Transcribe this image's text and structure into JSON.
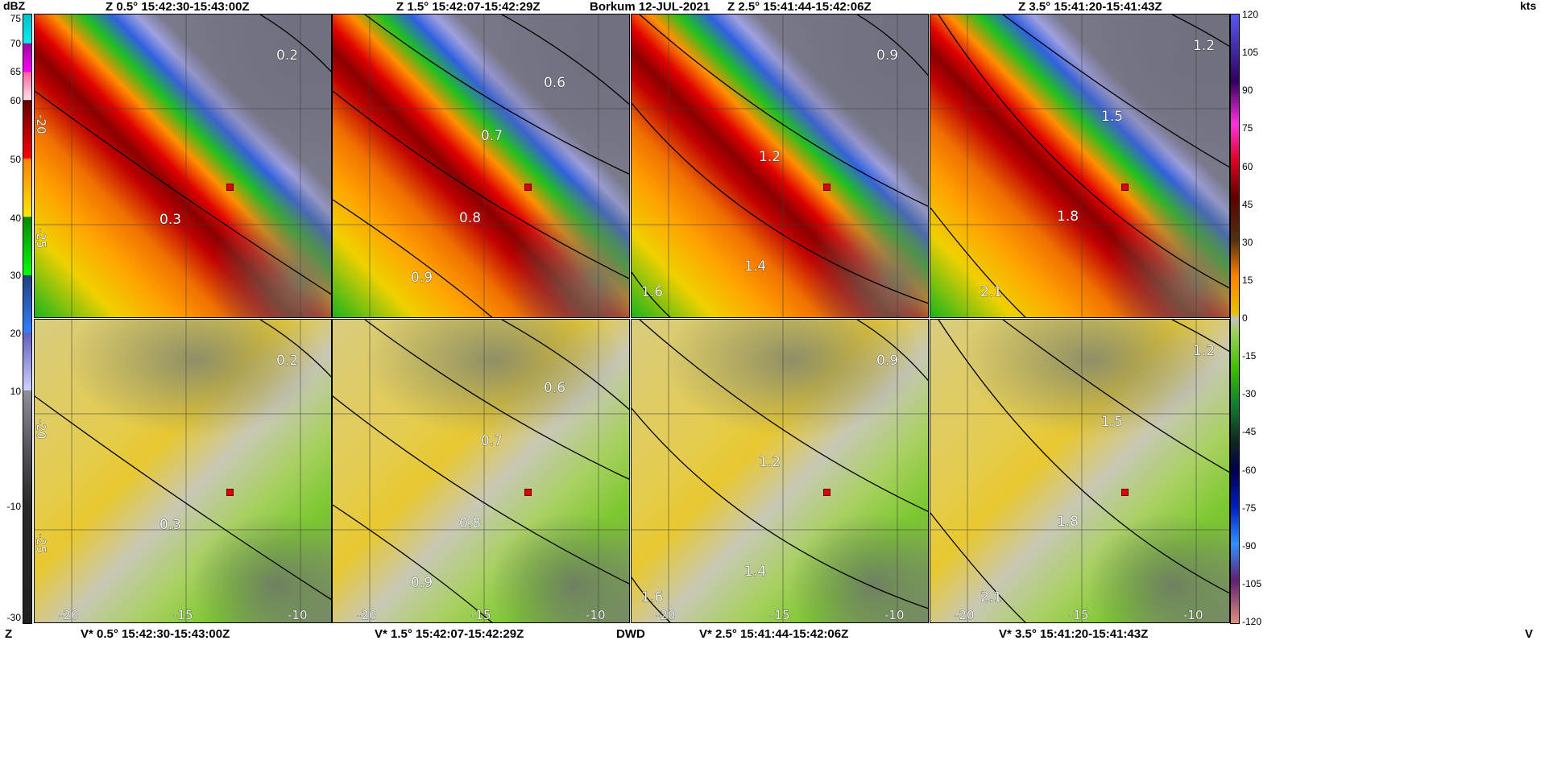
{
  "header": {
    "titles": [
      "Z 0.5°  15:42:30-15:43:00Z",
      "Z 1.5°  15:42:07-15:42:29Z",
      "Z 2.5°  15:41:44-15:42:06Z",
      "Z 3.5°  15:41:20-15:41:43Z"
    ],
    "station": "Borkum  12-JUL-2021",
    "left_unit": "dBZ",
    "right_unit": "kts"
  },
  "footer": {
    "titles": [
      "V* 0.5°  15:42:30-15:43:00Z",
      "V* 1.5°  15:42:07-15:42:29Z",
      "V* 2.5°  15:41:44-15:42:06Z",
      "V* 3.5°  15:41:20-15:41:43Z"
    ],
    "source": "DWD",
    "left_product": "Z",
    "right_product": "V"
  },
  "reflectivity_scale": {
    "unit": "dBZ",
    "ticks": [
      "75",
      "70",
      "65",
      "60",
      "50",
      "40",
      "30",
      "20",
      "10",
      "-10",
      "-30"
    ],
    "colors": [
      "#00c8d8",
      "#e000e0",
      "#ffc0d0",
      "#600000",
      "#e00000",
      "#ff9000",
      "#ffe000",
      "#00a000",
      "#20ff20",
      "#204080",
      "#3070ff",
      "#7070d0",
      "#c0c0ff",
      "#909098",
      "#202020"
    ]
  },
  "velocity_scale": {
    "unit": "kts",
    "ticks": [
      "120",
      "105",
      "90",
      "75",
      "60",
      "45",
      "30",
      "15",
      "0",
      "-15",
      "-30",
      "-45",
      "-60",
      "-75",
      "-90",
      "-105",
      "-120"
    ],
    "colors": [
      "#5050e8",
      "#400060",
      "#ff30d0",
      "#e00020",
      "#600000",
      "#503010",
      "#ff8000",
      "#e0c000",
      "#c0c0c0",
      "#90d050",
      "#40c000",
      "#108030",
      "#102820",
      "#000050",
      "#0020c0",
      "#3090ff",
      "#602070",
      "#e09080"
    ]
  },
  "panels": [
    {
      "contours": [
        "0.2",
        "0.3"
      ]
    },
    {
      "contours": [
        "0.6",
        "0.7",
        "0.8",
        "0.9"
      ]
    },
    {
      "contours": [
        "0.9",
        "1.2",
        "1.4",
        "1.6"
      ]
    },
    {
      "contours": [
        "1.2",
        "1.5",
        "1.8",
        "2.1"
      ]
    }
  ],
  "x_axis_ticks": [
    "-20",
    "-15",
    "-10"
  ],
  "y_axis_ticks": [
    "-20",
    "-25"
  ],
  "marker_color": "#e00000"
}
